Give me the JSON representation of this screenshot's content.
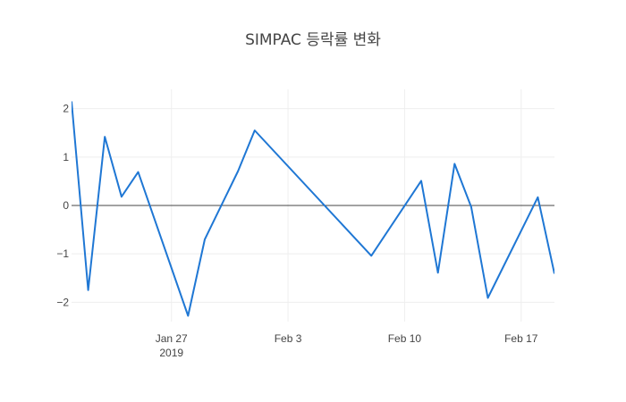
{
  "chart_data": {
    "type": "line",
    "title": "SIMPAC 등락률 변화",
    "xlabel": "",
    "ylabel": "",
    "x_axis": {
      "type": "date",
      "range": [
        "2019-01-21",
        "2019-02-19"
      ],
      "ticks": [
        {
          "value": "2019-01-27",
          "label": "Jan 27",
          "sublabel": "2019"
        },
        {
          "value": "2019-02-03",
          "label": "Feb 3",
          "sublabel": ""
        },
        {
          "value": "2019-02-10",
          "label": "Feb 10",
          "sublabel": ""
        },
        {
          "value": "2019-02-17",
          "label": "Feb 17",
          "sublabel": ""
        }
      ]
    },
    "y_axis": {
      "range": [
        -2.4,
        2.4
      ],
      "ticks": [
        {
          "value": 2,
          "label": "2"
        },
        {
          "value": 1,
          "label": "1"
        },
        {
          "value": 0,
          "label": "0"
        },
        {
          "value": -1,
          "label": "−1"
        },
        {
          "value": -2,
          "label": "−2"
        }
      ]
    },
    "grid": true,
    "zeroline": true,
    "legend": "none",
    "series": [
      {
        "name": "",
        "color": "#1f77d4",
        "x": [
          "2019-01-21",
          "2019-01-22",
          "2019-01-23",
          "2019-01-24",
          "2019-01-25",
          "2019-01-28",
          "2019-01-29",
          "2019-01-31",
          "2019-02-01",
          "2019-02-08",
          "2019-02-11",
          "2019-02-12",
          "2019-02-13",
          "2019-02-14",
          "2019-02-15",
          "2019-02-18",
          "2019-02-19"
        ],
        "y": [
          2.15,
          -1.75,
          1.42,
          0.18,
          0.69,
          -2.28,
          -0.7,
          0.71,
          1.55,
          -1.04,
          0.51,
          -1.39,
          0.86,
          -0.03,
          -1.91,
          0.17,
          -1.41
        ]
      }
    ]
  }
}
